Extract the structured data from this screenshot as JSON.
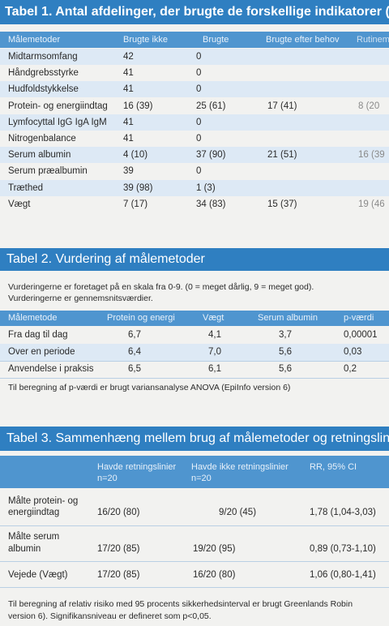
{
  "table1": {
    "title": "Tabel 1. Antal afdelinger, der brugte de forskellige indikatorer (pc",
    "headers": [
      "Målemetoder",
      "Brugte ikke",
      "Brugte",
      "Brugte efter behov",
      "Rutinem"
    ],
    "rows": [
      [
        "Midtarmsomfang",
        "42",
        "0",
        "",
        ""
      ],
      [
        "Håndgrebsstyrke",
        "41",
        "0",
        "",
        ""
      ],
      [
        "Hudfoldstykkelse",
        "41",
        "0",
        "",
        ""
      ],
      [
        "Protein- og energiindtag",
        "16 (39)",
        "25 (61)",
        "17 (41)",
        "8 (20"
      ],
      [
        "Lymfocyttal IgG IgA IgM",
        "41",
        "0",
        "",
        ""
      ],
      [
        "Nitrogenbalance",
        "41",
        "0",
        "",
        ""
      ],
      [
        "Serum albumin",
        "4 (10)",
        "37 (90)",
        "21 (51)",
        "16 (39"
      ],
      [
        "Serum præalbumin",
        "39",
        "0",
        "",
        ""
      ],
      [
        "Træthed",
        "39 (98)",
        "1  (3)",
        "",
        ""
      ],
      [
        "Vægt",
        "7 (17)",
        "34 (83)",
        "15 (37)",
        "19 (46"
      ]
    ]
  },
  "table2": {
    "title": "Tabel 2. Vurdering af målemetoder",
    "intro_1": "Vurderingerne er foretaget på en skala fra 0-9. (0 = meget dårlig, 9 = meget god).",
    "intro_2": "Vurderingerne er gennemsnitsværdier.",
    "headers": [
      "Målemetode",
      "Protein og energi",
      "Vægt",
      "Serum albumin",
      "p-værdi"
    ],
    "rows": [
      [
        "Fra dag til dag",
        "6,7",
        "4,1",
        "3,7",
        "0,00001"
      ],
      [
        "Over en periode",
        "6,4",
        "7,0",
        "5,6",
        "0,03"
      ],
      [
        "Anvendelse i praksis",
        "6,5",
        "6,1",
        "5,6",
        "0,2"
      ]
    ],
    "note": "Til beregning af p-værdi er brugt variansanalyse ANOVA (EpiInfo version 6)"
  },
  "table3": {
    "title": "Tabel 3. Sammenhæng mellem brug af målemetoder og retningslin",
    "headers": [
      [
        "",
        ""
      ],
      [
        "Havde retningslinier",
        "n=20"
      ],
      [
        "Havde ikke retningslinier",
        "n=20"
      ],
      [
        "RR, 95% CI",
        ""
      ]
    ],
    "rows": [
      [
        "Målte protein- og",
        "energiindtag",
        "16/20 (80)",
        "9/20 (45)",
        "1,78 (1,04-3,03)"
      ],
      [
        "Målte serum",
        "albumin",
        "17/20 (85)",
        "19/20 (95)",
        "0,89 (0,73-1,10)"
      ],
      [
        "Vejede (Vægt)",
        "",
        "17/20 (85)",
        "16/20 (80)",
        "1,06 (0,80-1,41)"
      ]
    ],
    "note_1": "Til beregning af relativ risiko med 95 procents sikkerhedsinterval er brugt Greenlands Robin",
    "note_2": "version 6). Signifikansniveau er defineret som p<0,05."
  }
}
